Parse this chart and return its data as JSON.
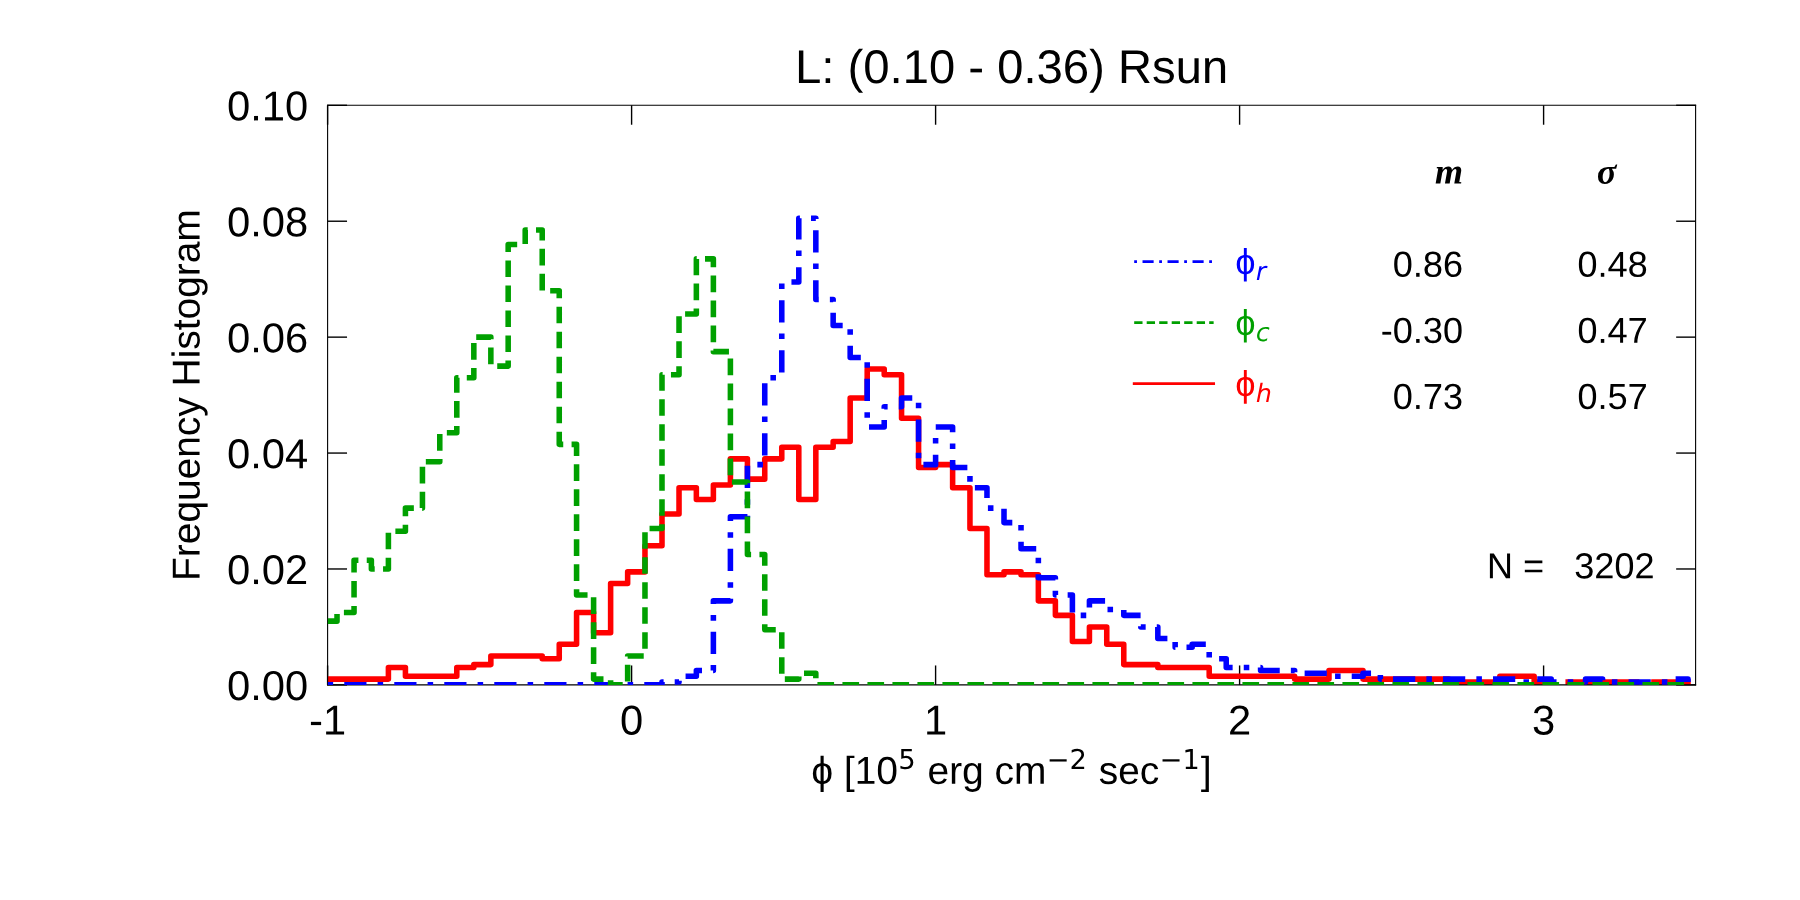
{
  "chart_data": {
    "type": "step",
    "title": "L: (0.10 - 0.36) Rsun",
    "xlabel": "ϕ [10$^{5}$ erg cm$^{−2}$ sec$^{−1}$]",
    "ylabel": "Frequency Histogram",
    "x": [
      -1,
      -0.969,
      -0.913,
      -0.856,
      -0.8,
      -0.744,
      -0.688,
      -0.631,
      -0.575,
      -0.519,
      -0.463,
      -0.406,
      -0.35,
      -0.294,
      -0.238,
      -0.181,
      -0.125,
      -0.069,
      -0.013,
      0.044,
      0.1,
      0.156,
      0.213,
      0.269,
      0.325,
      0.381,
      0.438,
      0.494,
      0.55,
      0.606,
      0.663,
      0.719,
      0.775,
      0.831,
      0.888,
      0.944,
      1.0,
      1.056,
      1.113,
      1.169,
      1.225,
      1.281,
      1.338,
      1.394,
      1.45,
      1.506,
      1.563,
      1.619,
      1.675,
      1.731,
      1.788,
      1.844,
      1.9,
      1.956,
      2.013,
      2.069,
      2.125,
      2.181,
      2.238,
      2.294,
      2.35,
      2.406,
      2.463,
      2.519,
      2.575,
      2.631,
      2.688,
      2.744,
      2.8,
      2.856,
      2.913,
      2.969,
      3.025,
      3.081,
      3.138,
      3.194,
      3.25,
      3.306,
      3.363,
      3.419,
      3.475
    ],
    "series": [
      {
        "name": "ϕ$_{r}$",
        "color": "#0000ff",
        "line_style": "dashdot",
        "values": [
          0,
          0,
          0,
          0,
          0,
          0,
          0,
          0,
          0,
          0,
          0,
          0,
          0,
          0,
          0,
          0,
          0,
          0,
          0,
          0,
          0.0005,
          0.0015,
          0.0025,
          0.0145,
          0.029,
          0.038,
          0.053,
          0.0695,
          0.0805,
          0.0665,
          0.062,
          0.0565,
          0.0445,
          0.048,
          0.0495,
          0.038,
          0.0445,
          0.0375,
          0.034,
          0.0305,
          0.028,
          0.0235,
          0.0185,
          0.0155,
          0.012,
          0.0145,
          0.013,
          0.012,
          0.01,
          0.008,
          0.0065,
          0.007,
          0.0045,
          0.003,
          0.003,
          0.0025,
          0.0025,
          0.002,
          0.002,
          0.0015,
          0.0015,
          0.002,
          0.001,
          0.001,
          0.001,
          0.001,
          0.001,
          0.001,
          0.001,
          0.001,
          0.0005,
          0.001,
          0.0005,
          0.0005,
          0.001,
          0.0005,
          0.0005,
          0.0005,
          0.0005,
          0.001,
          0.0005
        ]
      },
      {
        "name": "ϕ$_{c}$",
        "color": "#00a000",
        "line_style": "dashed",
        "values": [
          0.011,
          0.0125,
          0.0215,
          0.02,
          0.0265,
          0.0305,
          0.0385,
          0.0435,
          0.053,
          0.06,
          0.055,
          0.076,
          0.0785,
          0.068,
          0.0415,
          0.0155,
          0.001,
          0,
          0.005,
          0.027,
          0.0535,
          0.064,
          0.0735,
          0.0575,
          0.035,
          0.0225,
          0.0095,
          0.001,
          0.002,
          0,
          0,
          0,
          0,
          0,
          0,
          0,
          0,
          0,
          0,
          0,
          0,
          0,
          0,
          0,
          0,
          0,
          0,
          0,
          0,
          0,
          0,
          0,
          0,
          0,
          0,
          0,
          0,
          0,
          0,
          0,
          0,
          0,
          0,
          0,
          0,
          0,
          0,
          0,
          0,
          0,
          0,
          0,
          0,
          0,
          0,
          0,
          0,
          0,
          0,
          0,
          0
        ]
      },
      {
        "name": "ϕ$_{h}$",
        "color": "#ff0000",
        "line_style": "solid",
        "values": [
          0.001,
          0.001,
          0.001,
          0.001,
          0.003,
          0.0015,
          0.0015,
          0.0015,
          0.003,
          0.0035,
          0.005,
          0.005,
          0.005,
          0.0045,
          0.007,
          0.0125,
          0.009,
          0.0175,
          0.0195,
          0.024,
          0.0295,
          0.034,
          0.032,
          0.0345,
          0.039,
          0.0355,
          0.039,
          0.041,
          0.032,
          0.041,
          0.042,
          0.0495,
          0.0545,
          0.0535,
          0.046,
          0.0375,
          0.038,
          0.034,
          0.027,
          0.019,
          0.0195,
          0.019,
          0.0145,
          0.012,
          0.0075,
          0.01,
          0.007,
          0.0035,
          0.0035,
          0.003,
          0.003,
          0.003,
          0.0015,
          0.0015,
          0.0015,
          0.0015,
          0.0015,
          0.001,
          0.001,
          0.0025,
          0.0025,
          0.001,
          0.001,
          0.001,
          0.001,
          0.001,
          0.0005,
          0.0005,
          0.0005,
          0.0015,
          0.0015,
          0.0005,
          null,
          0.0005,
          0.0005,
          0.0005,
          0.0005,
          null,
          0.0005,
          0.0005,
          0.0005
        ]
      }
    ],
    "xlim": [
      -1,
      3.5
    ],
    "xticks": [
      -1,
      0,
      1,
      2,
      3
    ],
    "ylim": [
      0,
      0.1
    ],
    "yticks": [
      {
        "value": 0,
        "label": "0.00"
      },
      {
        "value": 0.02,
        "label": "0.02"
      },
      {
        "value": 0.04,
        "label": "0.04"
      },
      {
        "value": 0.06,
        "label": "0.06"
      },
      {
        "value": 0.08,
        "label": "0.08"
      },
      {
        "value": 0.1,
        "label": "0.10"
      }
    ],
    "legend": "top right",
    "grid": false,
    "annotations": [
      "m",
      "σ",
      "0.86",
      "0.48",
      "-0.30",
      "0.47",
      "0.73",
      "0.57",
      "N =   3202"
    ]
  }
}
